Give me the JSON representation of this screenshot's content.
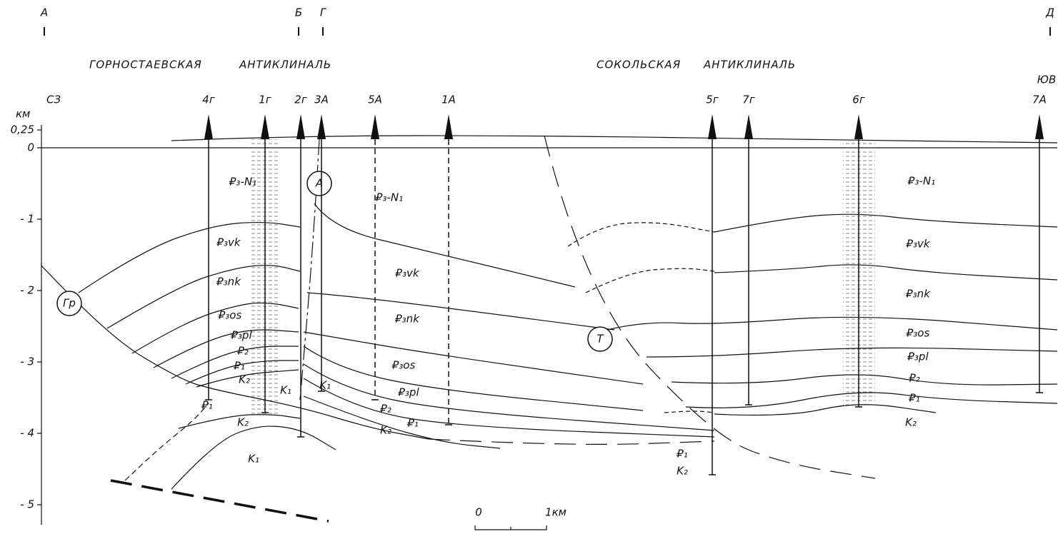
{
  "section_marks": [
    "А",
    "Б",
    "Г",
    "Д"
  ],
  "anticlines": [
    {
      "name": "ГОРНОСТАЕВСКАЯ",
      "kind": "АНТИКЛИНАЛЬ"
    },
    {
      "name": "СОКОЛЬСКАЯ",
      "kind": "АНТИКЛИНАЛЬ"
    }
  ],
  "directions": [
    "СЗ",
    "ЮВ"
  ],
  "depth_axis": {
    "unit": "км",
    "ticks": [
      {
        "value": 0.25,
        "label": "0,25"
      },
      0,
      {
        "value": -1,
        "label": "- 1"
      },
      {
        "value": -2,
        "label": "- 2"
      },
      {
        "value": -3,
        "label": "- 3"
      },
      {
        "value": -4,
        "label": "- 4"
      },
      {
        "value": -5,
        "label": "- 5"
      }
    ]
  },
  "wells": [
    "4г",
    "1г",
    "2г",
    "3А",
    "5А",
    "1А",
    "5г",
    "7г",
    "6г",
    "7А"
  ],
  "faults": [
    "Гр",
    "А",
    "Т"
  ],
  "formations": [
    "₽₃-N₁",
    "₽₃vk",
    "₽₃nk",
    "₽₃os",
    "₽₃pl",
    "₽₂",
    "₽₁",
    "K₂",
    "K₁",
    "₽₁",
    "K₂",
    "K₁",
    "₽₃-N₁",
    "₽₃vk",
    "₽₃nk",
    "₽₃os",
    "₽₃pl",
    "₽₂",
    "₽₁",
    "K₂",
    "K₁",
    "₽₃-N₁",
    "₽₃vk",
    "₽₃nk",
    "₽₃os",
    "₽₃pl",
    "₽₂",
    "₽₁",
    "K₂",
    "₽₁",
    "K₂"
  ],
  "scale": {
    "start": "0",
    "end": "1км"
  }
}
